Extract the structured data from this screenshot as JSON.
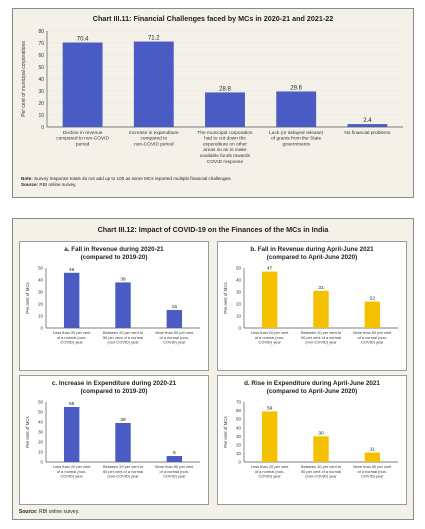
{
  "top": {
    "title": "Chart III.11: Financial Challenges faced by MCs in 2020-21 and 2021-22",
    "note_label": "Note:",
    "note_text": "Survey response totals do not add up to 100 as some MCs reported multiple financial challenges.",
    "source_label": "Source:",
    "source_text": "RBI online survey."
  },
  "bottom": {
    "title": "Chart III.12: Impact of COVID-19 on the Finances of the MCs in India",
    "source_label": "Source:",
    "source_text": "RBI online survey."
  },
  "colors": {
    "blue": "#4a5bc4",
    "gold": "#f5c000",
    "axis": "#555555",
    "grid": "#e3e3e3"
  },
  "chart_data": [
    {
      "type": "bar",
      "title": "Chart III.11: Financial Challenges faced by MCs in 2020-21 and 2021-22",
      "ylabel": "Per cent of municipal corporations",
      "ylim": [
        0,
        80
      ],
      "yticks": [
        0,
        10,
        20,
        30,
        40,
        50,
        60,
        70,
        80
      ],
      "categories": [
        [
          "Decline in revenue",
          "compared to non-COVID",
          "period"
        ],
        [
          "Increase in expenditure",
          "compared to",
          "non-COVID period"
        ],
        [
          "The municipal corporation",
          "had to cut down the",
          "expenditure on other",
          "areas so as to make",
          "available funds towards",
          "COVID response"
        ],
        [
          "Lack (or delayed release)",
          "of grants from the State",
          "governments"
        ],
        [
          "No financial problems"
        ]
      ],
      "values": [
        70.4,
        71.2,
        28.8,
        29.6,
        2.4
      ],
      "labels": [
        "70.4",
        "71.2",
        "28.8",
        "29.6",
        "2.4"
      ],
      "color": "#4a5bc4"
    },
    {
      "type": "bar",
      "title": "a. Fall in Revenue during 2020-21",
      "subtitle": "(compared to 2019-20)",
      "ylabel": "Per cent of MCs",
      "ylim": [
        0,
        50
      ],
      "yticks": [
        0,
        10,
        20,
        30,
        40,
        50
      ],
      "categories": [
        [
          "Less than 20 per cent",
          "of a normal (non-",
          "COVID) year"
        ],
        [
          "Between 20 per cent to",
          "50 per cent of a normal",
          "(non-COVID) year"
        ],
        [
          "More than 50 per cent",
          "of a normal (non-",
          "COVID) year"
        ]
      ],
      "values": [
        46,
        38,
        15
      ],
      "labels": [
        "46",
        "38",
        "15"
      ],
      "color": "#4a5bc4"
    },
    {
      "type": "bar",
      "title": "b. Fall in Revenue during April-June 2021",
      "subtitle": "(compared to April-June 2020)",
      "ylabel": "Per cent of MCs",
      "ylim": [
        0,
        50
      ],
      "yticks": [
        0,
        10,
        20,
        30,
        40,
        50
      ],
      "categories": [
        [
          "Less than 20 per cent",
          "of a normal (non-",
          "COVID) year"
        ],
        [
          "Between 20 per cent to",
          "50 per cent of a normal",
          "(non-COVID) year"
        ],
        [
          "More than 50 per cent",
          "of a normal (non-",
          "COVID) year"
        ]
      ],
      "values": [
        47,
        31,
        22
      ],
      "labels": [
        "47",
        "31",
        "22"
      ],
      "color": "#f5c000"
    },
    {
      "type": "bar",
      "title": "c. Increase in Expenditure during 2020-21",
      "subtitle": "(compared to 2019-20)",
      "ylabel": "Per cent of MCs",
      "ylim": [
        0,
        60
      ],
      "yticks": [
        0,
        10,
        20,
        30,
        40,
        50,
        60
      ],
      "categories": [
        [
          "Less than 20 per cent",
          "of a normal (non-",
          "COVID) year"
        ],
        [
          "Between 20 per cent to",
          "50 per cent of a normal",
          "(non-COVID) year"
        ],
        [
          "More than 50 per cent",
          "of a normal (non-",
          "COVID) year"
        ]
      ],
      "values": [
        55,
        39,
        6
      ],
      "labels": [
        "55",
        "39",
        "6"
      ],
      "color": "#4a5bc4"
    },
    {
      "type": "bar",
      "title": "d. Rise in Expenditure during April-June 2021",
      "subtitle": "(compared to April-June 2020)",
      "ylabel": "Per cent of MCs",
      "ylim": [
        0,
        70
      ],
      "yticks": [
        0,
        10,
        20,
        30,
        40,
        50,
        60,
        70
      ],
      "categories": [
        [
          "Less than 20 per cent",
          "of a normal (non-",
          "COVID) year"
        ],
        [
          "Between 20 per cent to",
          "50 per cent of a normal",
          "(non-COVID) year"
        ],
        [
          "More than 50 per cent",
          "of a normal (non-",
          "COVID) year"
        ]
      ],
      "values": [
        59,
        30,
        11
      ],
      "labels": [
        "59",
        "30",
        "11"
      ],
      "color": "#f5c000"
    }
  ]
}
